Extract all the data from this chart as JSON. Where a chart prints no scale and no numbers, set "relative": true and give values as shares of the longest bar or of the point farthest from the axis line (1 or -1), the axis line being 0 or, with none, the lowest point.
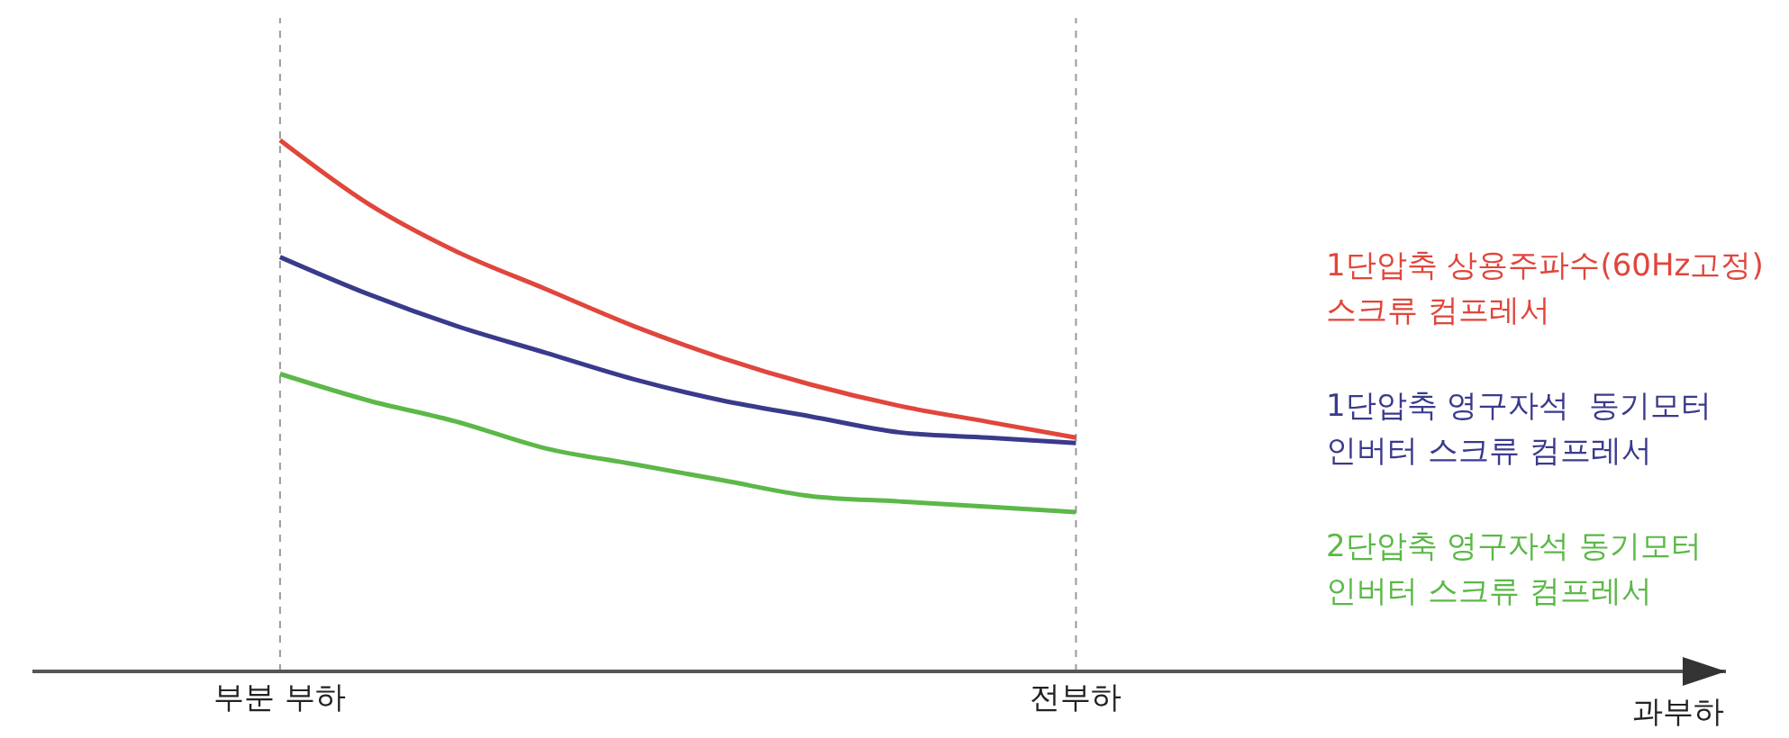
{
  "chart_data": {
    "type": "line",
    "relative": true,
    "xlabel": "과부하",
    "categories": [
      "부분 부하",
      null,
      null,
      null,
      null,
      null,
      null,
      null,
      null,
      "전부하",
      null,
      null,
      null,
      null,
      null,
      null,
      null
    ],
    "series": [
      {
        "name": "1단압축 상용주파수(60Hz고정)\n스크류 컴프레서",
        "color": "#e0463c",
        "values": [
          1,
          0.88,
          0.79,
          0.72,
          0.65,
          0.59,
          0.54,
          0.5,
          0.47,
          0.44,
          null,
          null,
          null,
          null,
          null,
          null,
          null
        ]
      },
      {
        "name": "1단압축 영구자석  동기모터\n인버터 스크류 컴프레서",
        "color": "#3a3a8c",
        "values": [
          0.78,
          0.71,
          0.65,
          0.6,
          0.55,
          0.51,
          0.48,
          0.45,
          0.44,
          0.43,
          null,
          null,
          null,
          null,
          null,
          null,
          null
        ]
      },
      {
        "name": "2단압축 영구자석 동기모터\n인버터 스크류 컴프레서",
        "color": "#5cb848",
        "values": [
          0.56,
          0.51,
          0.47,
          0.42,
          0.39,
          0.36,
          0.33,
          0.32,
          0.31,
          0.3,
          null,
          null,
          null,
          null,
          null,
          null,
          null
        ]
      }
    ],
    "ref_lines": [
      {
        "axis": "x",
        "value": "부분 부하",
        "color": "#9a9a9a",
        "line_style": "dashed"
      },
      {
        "axis": "x",
        "value": "전부하",
        "color": "#9a9a9a",
        "line_style": "dashed"
      }
    ],
    "legend": "right",
    "marker": "none",
    "line_style": "solid"
  }
}
